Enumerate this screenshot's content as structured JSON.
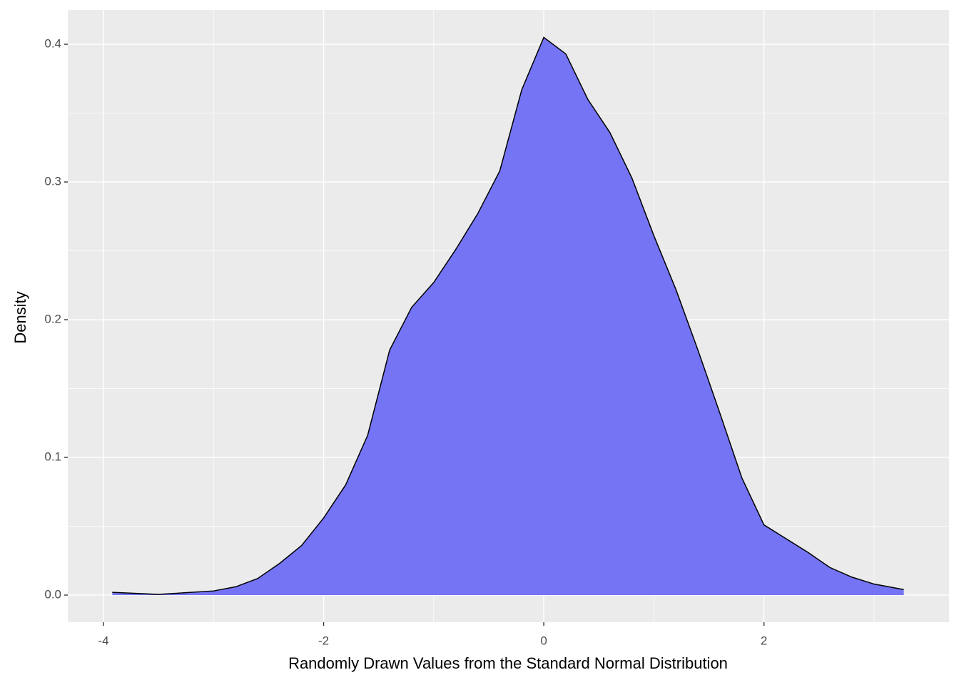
{
  "chart_data": {
    "type": "area",
    "x_label": "Randomly Drawn Values from the Standard Normal Distribution",
    "y_label": "Density",
    "x": [
      -3.92,
      -3.5,
      -3.0,
      -2.8,
      -2.6,
      -2.4,
      -2.2,
      -2.0,
      -1.8,
      -1.6,
      -1.4,
      -1.2,
      -1.0,
      -0.8,
      -0.6,
      -0.4,
      -0.2,
      0.0,
      0.2,
      0.4,
      0.6,
      0.8,
      1.0,
      1.2,
      1.4,
      1.6,
      1.8,
      2.0,
      2.2,
      2.4,
      2.6,
      2.8,
      3.0,
      3.27
    ],
    "values": [
      0.002,
      0.0005,
      0.003,
      0.006,
      0.012,
      0.023,
      0.036,
      0.056,
      0.08,
      0.116,
      0.178,
      0.209,
      0.227,
      0.251,
      0.277,
      0.308,
      0.367,
      0.405,
      0.393,
      0.36,
      0.336,
      0.303,
      0.261,
      0.222,
      0.178,
      0.132,
      0.085,
      0.051,
      0.041,
      0.031,
      0.02,
      0.013,
      0.008,
      0.004
    ],
    "color": "#7474f4",
    "line_color": "#000000",
    "xlim": [
      -4.324,
      3.681
    ],
    "ylim": [
      -0.0197,
      0.4249
    ],
    "xticks": [
      -4,
      -2,
      0,
      2
    ],
    "yticks": [
      {
        "value": 0,
        "label": "0.0"
      },
      0.1,
      0.2,
      0.3,
      0.4
    ],
    "grid": true,
    "minor_grid": true
  }
}
